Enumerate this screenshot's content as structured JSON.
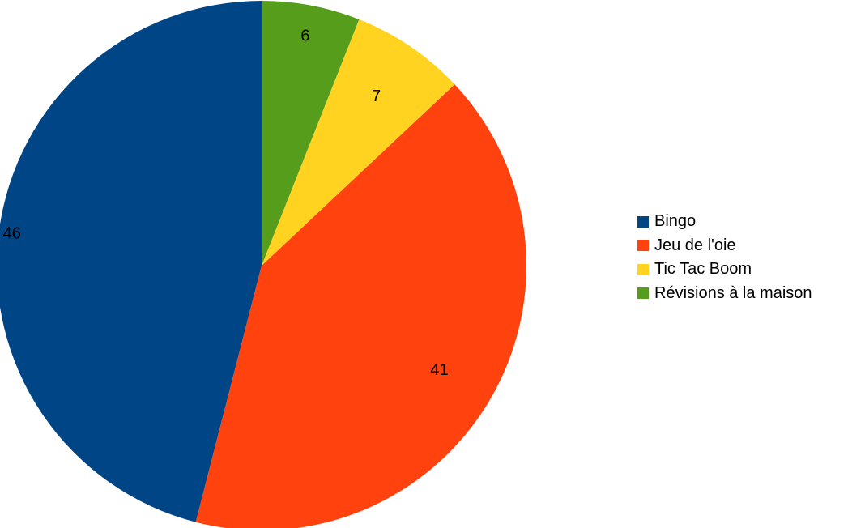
{
  "chart_data": {
    "type": "pie",
    "categories": [
      "Bingo",
      "Jeu de l'oie",
      "Tic Tac Boom",
      "Révisions à la maison"
    ],
    "values": [
      46,
      41,
      7,
      6
    ],
    "colors": [
      "#004586",
      "#ff420e",
      "#ffd320",
      "#579d1c"
    ],
    "data_labels": [
      "46",
      "41",
      "7",
      "6"
    ],
    "legend": "right",
    "start": "top",
    "direction": "counterclockwise"
  }
}
